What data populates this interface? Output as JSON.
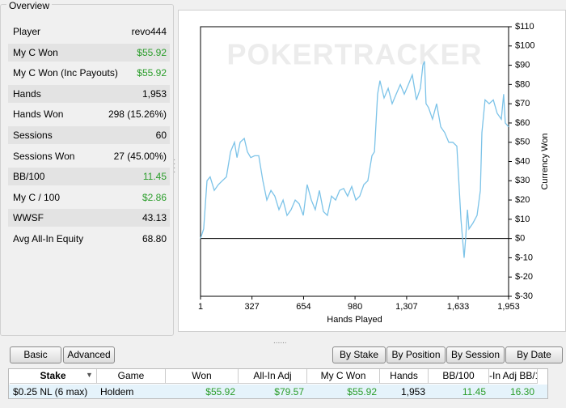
{
  "overview": {
    "title": "Overview",
    "rows": [
      {
        "label": "Player",
        "value": "revo444"
      },
      {
        "label": "My C Won",
        "value": "$55.92",
        "color": "#2a9d2a"
      },
      {
        "label": "My C Won (Inc Payouts)",
        "value": "$55.92",
        "color": "#2a9d2a"
      },
      {
        "label": "Hands",
        "value": "1,953"
      },
      {
        "label": "Hands Won",
        "value": "298 (15.26%)"
      },
      {
        "label": "Sessions",
        "value": "60"
      },
      {
        "label": "Sessions Won",
        "value": "27 (45.00%)"
      },
      {
        "label": "BB/100",
        "value": "11.45",
        "color": "#2a9d2a"
      },
      {
        "label": "My C / 100",
        "value": "$2.86",
        "color": "#2a9d2a"
      },
      {
        "label": "WWSF",
        "value": "43.13"
      },
      {
        "label": "Avg All-In Equity",
        "value": "68.80"
      }
    ]
  },
  "chart_data": {
    "type": "line",
    "watermark": "POKERTRACKER",
    "x_label": "Hands Played",
    "y_label": "Currency Won",
    "xlim": [
      1,
      1953
    ],
    "xticks": [
      1,
      327,
      654,
      980,
      {
        "value": 1307,
        "label": "1,307"
      },
      {
        "value": 1633,
        "label": "1,633"
      },
      {
        "value": 1953,
        "label": "1,953"
      }
    ],
    "ylim": [
      -30,
      110
    ],
    "yticks": [
      {
        "value": 110,
        "label": "$110"
      },
      {
        "value": 100,
        "label": "$100"
      },
      {
        "value": 90,
        "label": "$90"
      },
      {
        "value": 80,
        "label": "$80"
      },
      {
        "value": 70,
        "label": "$70"
      },
      {
        "value": 60,
        "label": "$60"
      },
      {
        "value": 50,
        "label": "$50"
      },
      {
        "value": 40,
        "label": "$40"
      },
      {
        "value": 30,
        "label": "$30"
      },
      {
        "value": 20,
        "label": "$20"
      },
      {
        "value": 10,
        "label": "$10"
      },
      {
        "value": 0,
        "label": "$0"
      },
      {
        "value": -10,
        "label": "$-10"
      },
      {
        "value": -20,
        "label": "$-20"
      },
      {
        "value": -30,
        "label": "$-30"
      }
    ],
    "series": [
      {
        "name": "Currency Won",
        "color": "#7cc3e8",
        "x": [
          1,
          21,
          42,
          62,
          88,
          114,
          139,
          165,
          191,
          216,
          232,
          252,
          278,
          298,
          319,
          344,
          370,
          396,
          421,
          447,
          472,
          498,
          524,
          549,
          575,
          601,
          626,
          652,
          677,
          703,
          728,
          754,
          780,
          805,
          831,
          857,
          882,
          908,
          933,
          959,
          985,
          1010,
          1036,
          1061,
          1087,
          1103,
          1123,
          1138,
          1164,
          1190,
          1215,
          1241,
          1267,
          1292,
          1318,
          1343,
          1369,
          1394,
          1410,
          1420,
          1430,
          1446,
          1471,
          1497,
          1523,
          1548,
          1574,
          1599,
          1625,
          1651,
          1671,
          1681,
          1692,
          1702,
          1727,
          1753,
          1774,
          1784,
          1804,
          1830,
          1856,
          1881,
          1907,
          1922,
          1932,
          1953
        ],
        "values": [
          0,
          5,
          30,
          32,
          25,
          28,
          30,
          32,
          45,
          50,
          42,
          50,
          52,
          45,
          42,
          43,
          43,
          30,
          20,
          25,
          22,
          15,
          20,
          12,
          15,
          20,
          18,
          12,
          28,
          20,
          15,
          25,
          14,
          12,
          22,
          20,
          25,
          26,
          22,
          27,
          20,
          22,
          28,
          30,
          43,
          45,
          75,
          82,
          73,
          78,
          70,
          75,
          80,
          75,
          80,
          85,
          72,
          78,
          90,
          92,
          70,
          68,
          62,
          70,
          58,
          55,
          50,
          50,
          48,
          10,
          -10,
          0,
          15,
          5,
          8,
          12,
          25,
          55,
          72,
          70,
          72,
          65,
          62,
          75,
          60,
          58
        ]
      }
    ]
  },
  "tabs": {
    "left": [
      "Basic",
      "Advanced"
    ],
    "right": [
      "By Stake",
      "By Position",
      "By Session",
      "By Date"
    ]
  },
  "table": {
    "headers": [
      "Stake",
      "Game",
      "Won",
      "All-In Adj",
      "My C Won",
      "Hands",
      "BB/100",
      "-In Adj BB/1"
    ],
    "rows": [
      [
        "$0.25 NL (6 max)",
        "Holdem",
        "$55.92",
        "$79.57",
        "$55.92",
        "1,953",
        "11.45",
        "16.30"
      ]
    ]
  }
}
